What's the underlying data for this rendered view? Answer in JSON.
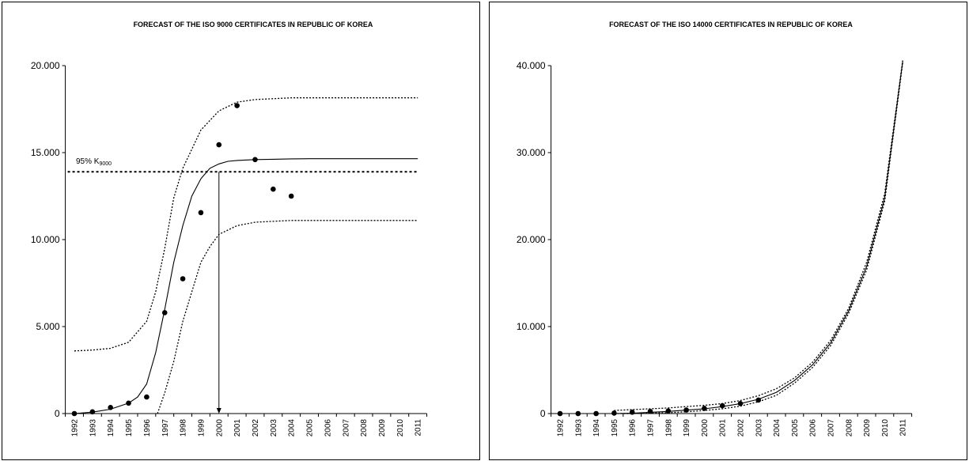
{
  "chart_data": [
    {
      "type": "scatter",
      "title": "FORECAST OF THE ISO 9000 CERTIFICATES IN REPUBLIC OF KOREA",
      "xlabel": "",
      "ylabel": "",
      "x_categories": [
        "1992",
        "1993",
        "1994",
        "1995",
        "1996",
        "1997",
        "1998",
        "1999",
        "2000",
        "2001",
        "2002",
        "2003",
        "2004",
        "2005",
        "2006",
        "2007",
        "2008",
        "2009",
        "2010",
        "2011"
      ],
      "ylim": [
        0,
        20000
      ],
      "yticks": [
        0,
        5000,
        10000,
        15000,
        20000
      ],
      "ytick_labels": [
        "0",
        "5.000",
        "10.000",
        "15.000",
        "20.000"
      ],
      "observed": {
        "x": [
          "1992",
          "1993",
          "1994",
          "1995",
          "1996",
          "1997",
          "1998",
          "1999",
          "2000",
          "2001",
          "2002",
          "2003",
          "2004"
        ],
        "values": [
          0,
          100,
          350,
          600,
          950,
          5800,
          7750,
          11550,
          15450,
          17700,
          14600,
          12900,
          12500
        ]
      },
      "fitted": {
        "x": [
          "1992",
          "1993",
          "1994",
          "1995",
          "1995.5",
          "1996",
          "1996.5",
          "1997",
          "1997.5",
          "1998",
          "1998.5",
          "1999",
          "1999.5",
          "2000",
          "2000.5",
          "2001",
          "2002",
          "2003",
          "2004",
          "2005",
          "2006",
          "2007",
          "2008",
          "2009",
          "2010",
          "2011"
        ],
        "values": [
          0,
          80,
          250,
          600,
          950,
          1700,
          3500,
          6000,
          8700,
          10800,
          12500,
          13500,
          14100,
          14350,
          14500,
          14550,
          14600,
          14620,
          14640,
          14650,
          14650,
          14650,
          14650,
          14650,
          14650,
          14650
        ]
      },
      "upper_band": {
        "x": [
          "1992",
          "1993",
          "1994",
          "1995",
          "1996",
          "1996.5",
          "1997",
          "1997.5",
          "1998",
          "1999",
          "2000",
          "2001",
          "2002",
          "2003",
          "2004",
          "2005",
          "2006",
          "2007",
          "2008",
          "2009",
          "2010",
          "2011"
        ],
        "values": [
          3600,
          3650,
          3750,
          4100,
          5300,
          7000,
          9500,
          12400,
          14100,
          16300,
          17400,
          17900,
          18050,
          18100,
          18150,
          18150,
          18150,
          18150,
          18150,
          18150,
          18150,
          18150
        ]
      },
      "lower_band": {
        "x": [
          "1996.6",
          "1997",
          "1997.5",
          "1998",
          "1998.5",
          "1999",
          "1999.5",
          "2000",
          "2001",
          "2002",
          "2003",
          "2004",
          "2005",
          "2006",
          "2007",
          "2008",
          "2009",
          "2010",
          "2011"
        ],
        "values": [
          0,
          1200,
          3000,
          5300,
          7000,
          8700,
          9600,
          10300,
          10800,
          11000,
          11050,
          11100,
          11100,
          11100,
          11100,
          11100,
          11100,
          11100,
          11100
        ]
      },
      "k95": {
        "label": "95% K",
        "subscript": "9000",
        "value": 13900
      },
      "arrow_year": "2000"
    },
    {
      "type": "scatter",
      "title": "FORECAST OF THE ISO 14000 CERTIFICATES IN REPUBLIC OF KOREA",
      "xlabel": "",
      "ylabel": "",
      "x_categories": [
        "1992",
        "1993",
        "1994",
        "1995",
        "1996",
        "1997",
        "1998",
        "1999",
        "2000",
        "2001",
        "2002",
        "2003",
        "2004",
        "2005",
        "2006",
        "2007",
        "2008",
        "2009",
        "2010",
        "2011"
      ],
      "ylim": [
        0,
        40000
      ],
      "yticks": [
        0,
        10000,
        20000,
        30000,
        40000
      ],
      "ytick_labels": [
        "0",
        "10.000",
        "20.000",
        "30.000",
        "40.000"
      ],
      "observed": {
        "x": [
          "1992",
          "1993",
          "1994",
          "1995",
          "1996",
          "1997",
          "1998",
          "1999",
          "2000",
          "2001",
          "2002",
          "2003"
        ],
        "values": [
          0,
          0,
          0,
          50,
          150,
          250,
          300,
          400,
          600,
          900,
          1150,
          1550
        ]
      },
      "fitted": {
        "x": [
          "1995",
          "1996",
          "1997",
          "1998",
          "1999",
          "2000",
          "2001",
          "2002",
          "2003",
          "2004",
          "2005",
          "2006",
          "2007",
          "2008",
          "2009",
          "2010",
          "2011"
        ],
        "values": [
          0,
          50,
          150,
          250,
          400,
          550,
          800,
          1150,
          1650,
          2450,
          3800,
          5600,
          8100,
          11800,
          16900,
          24800,
          40500
        ]
      },
      "upper_band": {
        "x": [
          "1995",
          "1996",
          "1997",
          "1998",
          "1999",
          "2000",
          "2001",
          "2002",
          "2003",
          "2004",
          "2005",
          "2006",
          "2007",
          "2008",
          "2009",
          "2010",
          "2011"
        ],
        "values": [
          350,
          450,
          550,
          650,
          800,
          950,
          1150,
          1500,
          2050,
          2850,
          4100,
          5900,
          8400,
          12100,
          17400,
          25300,
          40600
        ]
      },
      "lower_band": {
        "x": [
          "1995",
          "1996",
          "1997",
          "1998",
          "1999",
          "2000",
          "2001",
          "2002",
          "2003",
          "2004",
          "2005",
          "2006",
          "2007",
          "2008",
          "2009",
          "2010",
          "2011"
        ],
        "values": [
          0,
          0,
          50,
          100,
          200,
          350,
          550,
          850,
          1350,
          2100,
          3500,
          5300,
          7800,
          11500,
          16500,
          24400,
          40300
        ]
      }
    }
  ]
}
